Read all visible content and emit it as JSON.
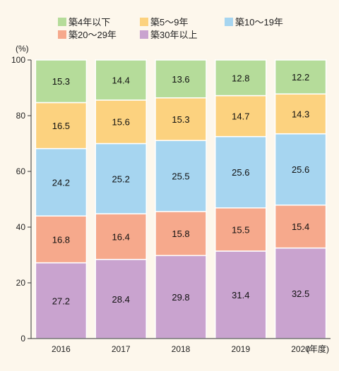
{
  "chart_data": {
    "type": "bar",
    "stacked": true,
    "categories": [
      "2016",
      "2017",
      "2018",
      "2019",
      "2020"
    ],
    "x_unit_label": "(年度)",
    "y_unit_label": "(%)",
    "ylim": [
      0,
      100
    ],
    "yticks": [
      0,
      20,
      40,
      60,
      80,
      100
    ],
    "grid": false,
    "legend_position": "top",
    "series": [
      {
        "name": "築30年以上",
        "color": "#c9a3cf",
        "values": [
          27.2,
          28.4,
          29.8,
          31.4,
          32.5
        ]
      },
      {
        "name": "築20〜29年",
        "color": "#f6a98c",
        "values": [
          16.8,
          16.4,
          15.8,
          15.5,
          15.4
        ]
      },
      {
        "name": "築10〜19年",
        "color": "#a6d5f0",
        "values": [
          24.2,
          25.2,
          25.5,
          25.6,
          25.6
        ]
      },
      {
        "name": "築5〜9年",
        "color": "#fcd27f",
        "values": [
          16.5,
          15.6,
          15.3,
          14.7,
          14.3
        ]
      },
      {
        "name": "築4年以下",
        "color": "#b5dc9a",
        "values": [
          15.3,
          14.4,
          13.6,
          12.8,
          12.2
        ]
      }
    ],
    "legend_order": [
      "築4年以下",
      "築5〜9年",
      "築10〜19年",
      "築20〜29年",
      "築30年以上"
    ]
  }
}
